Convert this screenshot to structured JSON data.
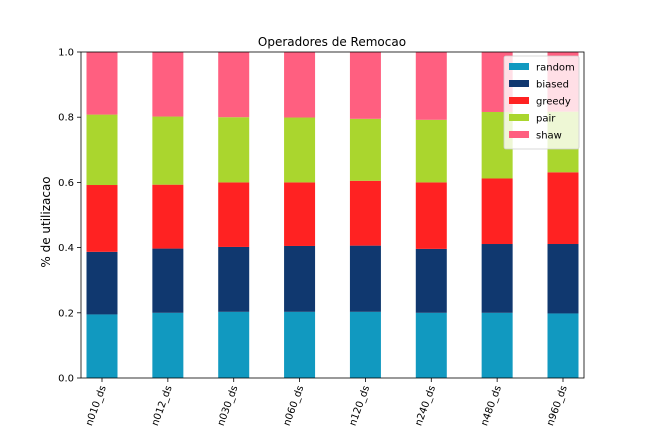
{
  "chart_data": {
    "type": "bar",
    "stacked": true,
    "title": "Operadores de Remocao",
    "xlabel": "",
    "ylabel": "% de utilizacao",
    "ylim": [
      0,
      1.0
    ],
    "yticks": [
      "0.0",
      "0.2",
      "0.4",
      "0.6",
      "0.8",
      "1.0"
    ],
    "grid": false,
    "legend_position": "top-right",
    "categories": [
      "n010_ds",
      "n012_ds",
      "n030_ds",
      "n060_ds",
      "n120_ds",
      "n240_ds",
      "n480_ds",
      "n960_ds"
    ],
    "series": [
      {
        "name": "random",
        "color": "#1199c0",
        "values": [
          0.195,
          0.2,
          0.203,
          0.203,
          0.203,
          0.2,
          0.2,
          0.198
        ]
      },
      {
        "name": "biased",
        "color": "#10386f",
        "values": [
          0.192,
          0.197,
          0.199,
          0.202,
          0.203,
          0.196,
          0.211,
          0.213
        ]
      },
      {
        "name": "greedy",
        "color": "#ff2222",
        "values": [
          0.205,
          0.196,
          0.198,
          0.195,
          0.199,
          0.204,
          0.201,
          0.22
        ]
      },
      {
        "name": "pair",
        "color": "#aad62e",
        "values": [
          0.216,
          0.209,
          0.2,
          0.199,
          0.19,
          0.192,
          0.204,
          0.186
        ]
      },
      {
        "name": "shaw",
        "color": "#ff5f80",
        "values": [
          0.192,
          0.198,
          0.2,
          0.201,
          0.205,
          0.208,
          0.184,
          0.183
        ]
      }
    ]
  }
}
